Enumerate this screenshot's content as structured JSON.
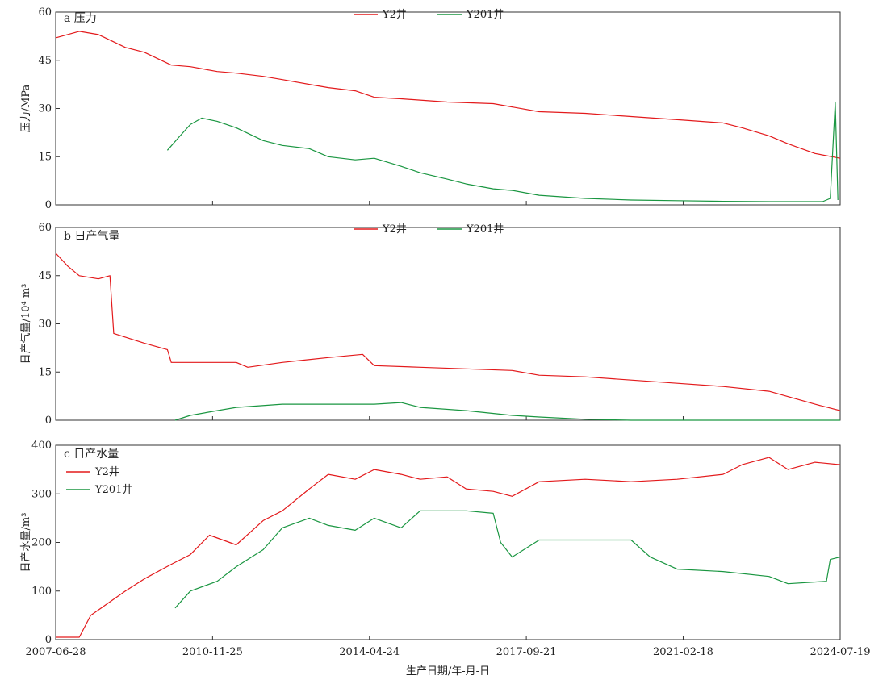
{
  "chart_data": [
    {
      "type": "line",
      "panel": "a",
      "title": "a 压力",
      "ylabel": "压力/MPa",
      "ylim": [
        0,
        60
      ],
      "yticks": [
        0,
        15,
        30,
        45,
        60
      ],
      "legend": "top-center",
      "colors": {
        "Y2井": "#e31a1c",
        "Y201井": "#1a9641"
      },
      "series": [
        {
          "name": "Y2井",
          "points": [
            [
              "2007-06-28",
              52
            ],
            [
              "2008-01-01",
              54
            ],
            [
              "2008-06-01",
              53
            ],
            [
              "2009-01-01",
              49
            ],
            [
              "2009-06-01",
              47.5
            ],
            [
              "2010-01-01",
              43.5
            ],
            [
              "2010-06-01",
              43
            ],
            [
              "2011-01-01",
              41.5
            ],
            [
              "2011-06-01",
              41
            ],
            [
              "2012-01-01",
              40
            ],
            [
              "2012-06-01",
              39
            ],
            [
              "2013-01-01",
              37.5
            ],
            [
              "2013-06-01",
              36.5
            ],
            [
              "2014-01-01",
              35.5
            ],
            [
              "2014-06-01",
              33.5
            ],
            [
              "2015-01-01",
              33
            ],
            [
              "2016-01-01",
              32
            ],
            [
              "2017-01-01",
              31.5
            ],
            [
              "2018-01-01",
              29
            ],
            [
              "2019-01-01",
              28.5
            ],
            [
              "2020-01-01",
              27.5
            ],
            [
              "2021-01-01",
              26.5
            ],
            [
              "2022-01-01",
              25.5
            ],
            [
              "2022-06-01",
              24
            ],
            [
              "2023-01-01",
              21.5
            ],
            [
              "2023-06-01",
              19
            ],
            [
              "2024-01-01",
              16
            ],
            [
              "2024-07-19",
              14.5
            ]
          ]
        },
        {
          "name": "Y201井",
          "points": [
            [
              "2009-12-01",
              17
            ],
            [
              "2010-03-01",
              21
            ],
            [
              "2010-06-01",
              25
            ],
            [
              "2010-09-01",
              27
            ],
            [
              "2011-01-01",
              26
            ],
            [
              "2011-06-01",
              24
            ],
            [
              "2012-01-01",
              20
            ],
            [
              "2012-06-01",
              18.5
            ],
            [
              "2013-01-01",
              17.5
            ],
            [
              "2013-06-01",
              15
            ],
            [
              "2014-01-01",
              14
            ],
            [
              "2014-06-01",
              14.5
            ],
            [
              "2015-01-01",
              12
            ],
            [
              "2015-06-01",
              10
            ],
            [
              "2016-01-01",
              8
            ],
            [
              "2016-06-01",
              6.5
            ],
            [
              "2017-01-01",
              5
            ],
            [
              "2017-06-01",
              4.5
            ],
            [
              "2018-01-01",
              3
            ],
            [
              "2019-01-01",
              2
            ],
            [
              "2020-01-01",
              1.5
            ],
            [
              "2021-01-01",
              1.3
            ],
            [
              "2022-01-01",
              1.1
            ],
            [
              "2023-01-01",
              1
            ],
            [
              "2024-03-01",
              1
            ],
            [
              "2024-05-01",
              2
            ],
            [
              "2024-06-10",
              32
            ],
            [
              "2024-07-01",
              1.5
            ]
          ]
        }
      ]
    },
    {
      "type": "line",
      "panel": "b",
      "title": "b 日产气量",
      "ylabel": "日产气量/10⁴ m³",
      "ylim": [
        0,
        60
      ],
      "yticks": [
        0,
        15,
        30,
        45,
        60
      ],
      "legend": "top-center",
      "colors": {
        "Y2井": "#e31a1c",
        "Y201井": "#1a9641"
      },
      "series": [
        {
          "name": "Y2井",
          "points": [
            [
              "2007-06-28",
              52
            ],
            [
              "2007-10-01",
              48
            ],
            [
              "2008-01-01",
              45
            ],
            [
              "2008-06-01",
              44
            ],
            [
              "2008-09-01",
              45
            ],
            [
              "2008-10-01",
              27
            ],
            [
              "2009-06-01",
              24
            ],
            [
              "2009-12-01",
              22
            ],
            [
              "2010-01-01",
              18
            ],
            [
              "2011-06-01",
              18
            ],
            [
              "2011-09-01",
              16.5
            ],
            [
              "2012-06-01",
              18
            ],
            [
              "2013-06-01",
              19.5
            ],
            [
              "2014-03-01",
              20.5
            ],
            [
              "2014-06-01",
              17
            ],
            [
              "2015-06-01",
              16.5
            ],
            [
              "2016-06-01",
              16
            ],
            [
              "2017-06-01",
              15.5
            ],
            [
              "2018-01-01",
              14
            ],
            [
              "2019-01-01",
              13.5
            ],
            [
              "2020-01-01",
              12.5
            ],
            [
              "2021-01-01",
              11.5
            ],
            [
              "2022-01-01",
              10.5
            ],
            [
              "2023-01-01",
              9
            ],
            [
              "2024-01-01",
              5
            ],
            [
              "2024-07-19",
              3
            ]
          ]
        },
        {
          "name": "Y201井",
          "points": [
            [
              "2010-02-01",
              0
            ],
            [
              "2010-06-01",
              1.5
            ],
            [
              "2011-01-01",
              3
            ],
            [
              "2011-06-01",
              4
            ],
            [
              "2012-06-01",
              5
            ],
            [
              "2013-06-01",
              5
            ],
            [
              "2014-06-01",
              5
            ],
            [
              "2015-01-01",
              5.5
            ],
            [
              "2015-06-01",
              4
            ],
            [
              "2016-06-01",
              3
            ],
            [
              "2017-06-01",
              1.5
            ],
            [
              "2018-01-01",
              1
            ],
            [
              "2019-01-01",
              0.3
            ],
            [
              "2020-01-01",
              0
            ],
            [
              "2024-07-19",
              0
            ]
          ]
        }
      ]
    },
    {
      "type": "line",
      "panel": "c",
      "title": "c 日产水量",
      "ylabel": "日产水量/m³",
      "ylim": [
        0,
        400
      ],
      "yticks": [
        0,
        100,
        200,
        300,
        400
      ],
      "legend": "top-left",
      "colors": {
        "Y2井": "#e31a1c",
        "Y201井": "#1a9641"
      },
      "series": [
        {
          "name": "Y2井",
          "points": [
            [
              "2007-06-28",
              5
            ],
            [
              "2008-01-01",
              5
            ],
            [
              "2008-04-01",
              50
            ],
            [
              "2009-01-01",
              100
            ],
            [
              "2009-06-01",
              125
            ],
            [
              "2010-01-01",
              155
            ],
            [
              "2010-06-01",
              175
            ],
            [
              "2010-11-01",
              215
            ],
            [
              "2011-06-01",
              195
            ],
            [
              "2012-01-01",
              245
            ],
            [
              "2012-06-01",
              265
            ],
            [
              "2013-01-01",
              310
            ],
            [
              "2013-06-01",
              340
            ],
            [
              "2014-01-01",
              330
            ],
            [
              "2014-06-01",
              350
            ],
            [
              "2015-01-01",
              340
            ],
            [
              "2015-06-01",
              330
            ],
            [
              "2016-01-01",
              335
            ],
            [
              "2016-06-01",
              310
            ],
            [
              "2017-01-01",
              305
            ],
            [
              "2017-06-01",
              295
            ],
            [
              "2018-01-01",
              325
            ],
            [
              "2019-01-01",
              330
            ],
            [
              "2020-01-01",
              325
            ],
            [
              "2021-01-01",
              330
            ],
            [
              "2022-01-01",
              340
            ],
            [
              "2022-06-01",
              360
            ],
            [
              "2023-01-01",
              375
            ],
            [
              "2023-06-01",
              350
            ],
            [
              "2024-01-01",
              365
            ],
            [
              "2024-07-19",
              360
            ]
          ]
        },
        {
          "name": "Y201井",
          "points": [
            [
              "2010-02-01",
              65
            ],
            [
              "2010-06-01",
              100
            ],
            [
              "2011-01-01",
              120
            ],
            [
              "2011-06-01",
              150
            ],
            [
              "2012-01-01",
              185
            ],
            [
              "2012-06-01",
              230
            ],
            [
              "2013-01-01",
              250
            ],
            [
              "2013-06-01",
              235
            ],
            [
              "2014-01-01",
              225
            ],
            [
              "2014-06-01",
              250
            ],
            [
              "2015-01-01",
              230
            ],
            [
              "2015-06-01",
              265
            ],
            [
              "2016-06-01",
              265
            ],
            [
              "2017-01-01",
              260
            ],
            [
              "2017-03-01",
              200
            ],
            [
              "2017-06-01",
              170
            ],
            [
              "2018-01-01",
              205
            ],
            [
              "2019-01-01",
              205
            ],
            [
              "2020-01-01",
              205
            ],
            [
              "2020-06-01",
              170
            ],
            [
              "2021-01-01",
              145
            ],
            [
              "2022-01-01",
              140
            ],
            [
              "2023-01-01",
              130
            ],
            [
              "2023-06-01",
              115
            ],
            [
              "2024-04-01",
              120
            ],
            [
              "2024-05-01",
              165
            ],
            [
              "2024-07-19",
              170
            ]
          ]
        }
      ]
    }
  ],
  "xaxis": {
    "label": "生产日期/年-月-日",
    "start": "2007-06-28",
    "end": "2024-07-19",
    "ticks": [
      "2007-06-28",
      "2010-11-25",
      "2014-04-24",
      "2017-09-21",
      "2021-02-18",
      "2024-07-19"
    ]
  }
}
